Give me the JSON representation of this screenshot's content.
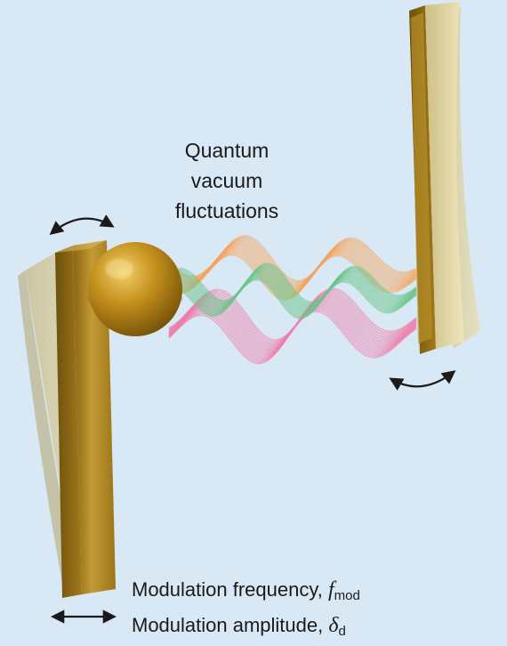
{
  "labels": {
    "title_lines": [
      "Quantum",
      "vacuum",
      "fluctuations"
    ],
    "mod_freq_text": "Modulation frequency, ",
    "mod_freq_symbol": "f",
    "mod_freq_sub": "mod",
    "mod_amp_text": "Modulation amplitude, ",
    "mod_amp_symbol": "δ",
    "mod_amp_sub": "d"
  },
  "colors": {
    "background": "#d9e8f5",
    "gold": "#b8902a",
    "gold_light": "#d8c88a",
    "wave_orange": "#f5a25a",
    "wave_green": "#6cc48a",
    "wave_pink": "#f07aa8",
    "arrow": "#1a1a1a"
  },
  "icons": [
    "curved-double-arrow-icon",
    "horizontal-double-arrow-icon"
  ]
}
